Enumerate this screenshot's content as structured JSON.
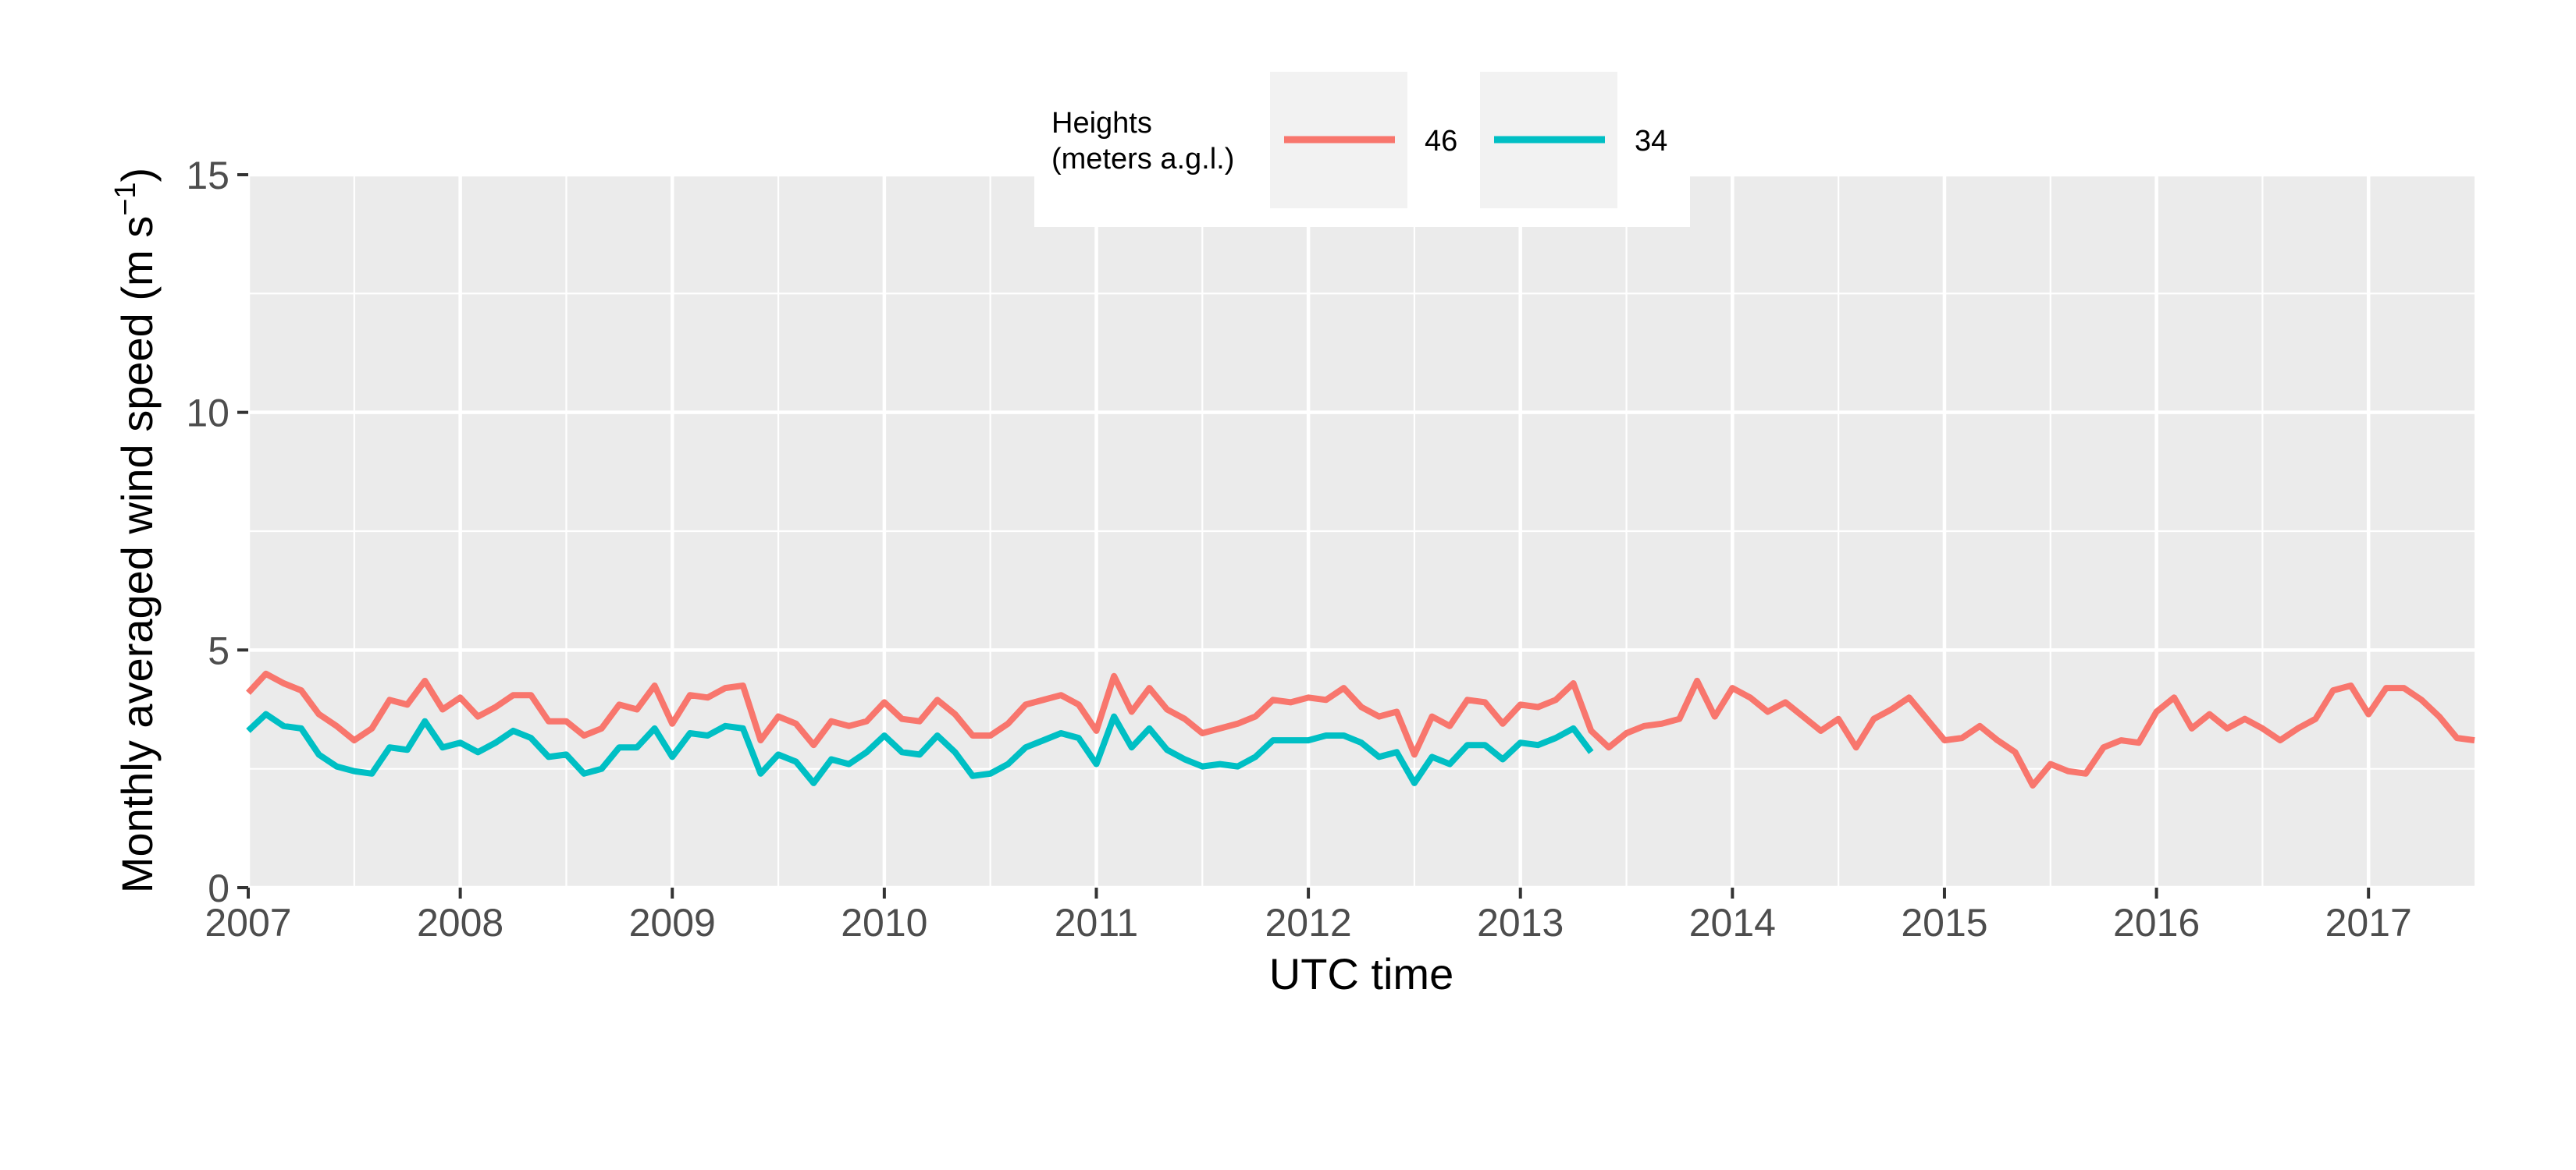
{
  "chart_data": {
    "type": "line",
    "title": "",
    "xlabel": "UTC time",
    "ylabel": "Monthly averaged wind speed (m s",
    "ylabel_superscript": "−1",
    "ylabel_close": ")",
    "xlim": [
      2007.0,
      2017.5
    ],
    "ylim": [
      0,
      15
    ],
    "x_ticks": [
      2007,
      2008,
      2009,
      2010,
      2011,
      2012,
      2013,
      2014,
      2015,
      2016,
      2017
    ],
    "x_tick_labels": [
      "2007",
      "2008",
      "2009",
      "2010",
      "2011",
      "2012",
      "2013",
      "2014",
      "2015",
      "2016",
      "2017"
    ],
    "y_ticks": [
      0,
      5,
      10,
      15
    ],
    "y_tick_labels": [
      "0",
      "5",
      "10",
      "15"
    ],
    "grid": true,
    "legend": {
      "title_lines": [
        "Heights",
        "(meters a.g.l.)"
      ],
      "placement": "top-center",
      "orientation": "horizontal"
    },
    "x_start": 2007.0,
    "x_step_months": 1,
    "series": [
      {
        "name": "46",
        "color": "#F8766D",
        "values": [
          4.1,
          4.5,
          4.3,
          4.15,
          3.65,
          3.4,
          3.1,
          3.35,
          3.95,
          3.85,
          4.35,
          3.75,
          4.0,
          3.6,
          3.8,
          4.05,
          4.05,
          3.5,
          3.5,
          3.2,
          3.35,
          3.85,
          3.75,
          4.25,
          3.45,
          4.05,
          4.0,
          4.2,
          4.25,
          3.1,
          3.6,
          3.45,
          3.0,
          3.5,
          3.4,
          3.5,
          3.9,
          3.55,
          3.5,
          3.95,
          3.65,
          3.2,
          3.2,
          3.45,
          3.85,
          3.95,
          4.05,
          3.85,
          3.3,
          4.45,
          3.7,
          4.2,
          3.75,
          3.55,
          3.25,
          3.35,
          3.45,
          3.6,
          3.95,
          3.9,
          4.0,
          3.95,
          4.2,
          3.8,
          3.6,
          3.7,
          2.8,
          3.6,
          3.4,
          3.95,
          3.9,
          3.45,
          3.85,
          3.8,
          3.95,
          4.3,
          3.3,
          2.95,
          3.25,
          3.4,
          3.45,
          3.55,
          4.35,
          3.6,
          4.2,
          4.0,
          3.7,
          3.9,
          3.6,
          3.3,
          3.55,
          2.95,
          3.55,
          3.75,
          4.0,
          3.55,
          3.1,
          3.15,
          3.4,
          3.1,
          2.85,
          2.15,
          2.6,
          2.45,
          2.4,
          2.95,
          3.1,
          3.05,
          3.7,
          4.0,
          3.35,
          3.65,
          3.35,
          3.55,
          3.35,
          3.1,
          3.35,
          3.55,
          4.15,
          4.25,
          3.65,
          4.2,
          4.2,
          3.95,
          3.6,
          3.15,
          3.1
        ]
      },
      {
        "name": "34",
        "color": "#00BFC4",
        "values": [
          3.3,
          3.65,
          3.4,
          3.35,
          2.8,
          2.55,
          2.45,
          2.4,
          2.95,
          2.9,
          3.5,
          2.95,
          3.05,
          2.85,
          3.05,
          3.3,
          3.15,
          2.75,
          2.8,
          2.4,
          2.5,
          2.95,
          2.95,
          3.35,
          2.75,
          3.25,
          3.2,
          3.4,
          3.35,
          2.4,
          2.8,
          2.65,
          2.2,
          2.7,
          2.6,
          2.85,
          3.2,
          2.85,
          2.8,
          3.2,
          2.85,
          2.35,
          2.4,
          2.6,
          2.95,
          3.1,
          3.25,
          3.15,
          2.6,
          3.6,
          2.95,
          3.35,
          2.9,
          2.7,
          2.55,
          2.6,
          2.55,
          2.75,
          3.1,
          3.1,
          3.1,
          3.2,
          3.2,
          3.05,
          2.75,
          2.85,
          2.2,
          2.75,
          2.6,
          3.0,
          3.0,
          2.7,
          3.05,
          3.0,
          3.15,
          3.35,
          2.85
        ]
      }
    ]
  }
}
